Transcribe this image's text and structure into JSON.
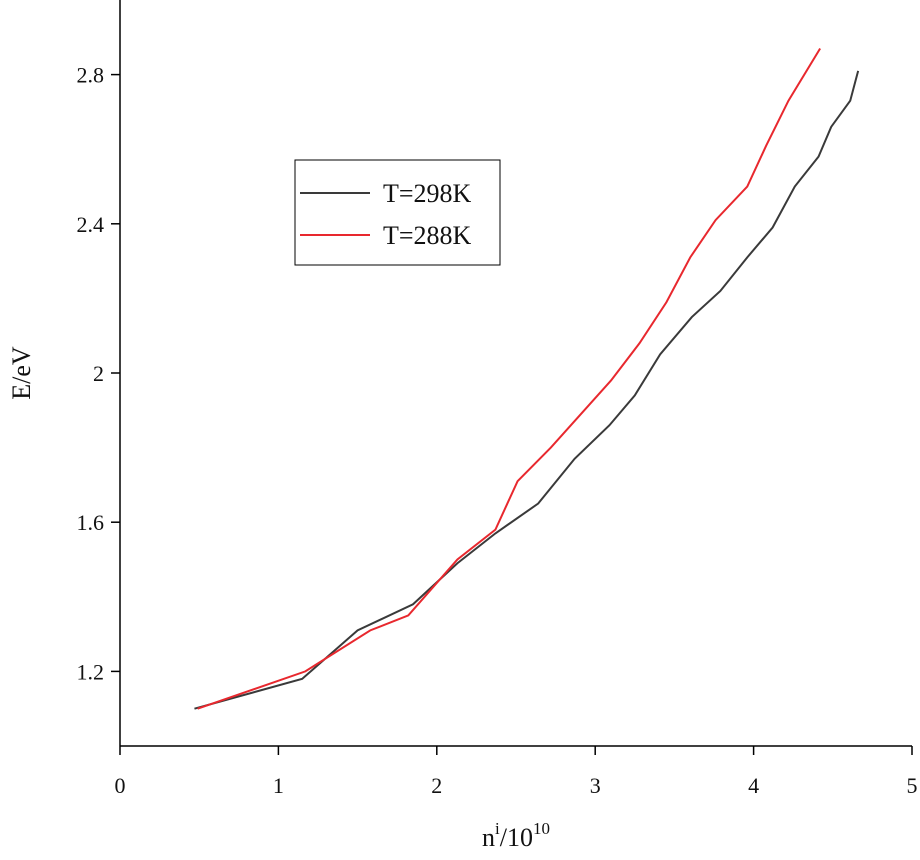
{
  "chart_data": {
    "type": "line",
    "xlabel": [
      "n",
      "i",
      "/10",
      "10"
    ],
    "ylabel": "E/eV",
    "xlim": [
      0,
      5
    ],
    "xticks": [
      0,
      1,
      2,
      3,
      4,
      5
    ],
    "ylim": [
      1.0,
      3.0
    ],
    "yticks": [
      1.2,
      1.6,
      2.0,
      2.4,
      2.8
    ],
    "legend": "upper left",
    "series": [
      {
        "name": "T=298K",
        "color": "#3a3a3a",
        "x": [
          0.47,
          1.15,
          1.5,
          1.85,
          2.13,
          2.37,
          2.64,
          2.87,
          3.09,
          3.25,
          3.41,
          3.61,
          3.79,
          3.96,
          4.12,
          4.26,
          4.41,
          4.49,
          4.61,
          4.66
        ],
        "values": [
          1.1,
          1.18,
          1.31,
          1.38,
          1.49,
          1.57,
          1.65,
          1.77,
          1.86,
          1.94,
          2.05,
          2.15,
          2.22,
          2.31,
          2.39,
          2.5,
          2.58,
          2.66,
          2.73,
          2.81
        ]
      },
      {
        "name": "T=288K",
        "color": "#e8282e",
        "x": [
          0.49,
          1.17,
          1.58,
          1.82,
          2.13,
          2.37,
          2.51,
          2.72,
          3.1,
          3.28,
          3.45,
          3.6,
          3.76,
          3.96,
          4.08,
          4.22,
          4.42
        ],
        "values": [
          1.1,
          1.2,
          1.31,
          1.35,
          1.5,
          1.58,
          1.71,
          1.8,
          1.98,
          2.08,
          2.19,
          2.31,
          2.41,
          2.5,
          2.61,
          2.73,
          2.87
        ]
      }
    ]
  }
}
